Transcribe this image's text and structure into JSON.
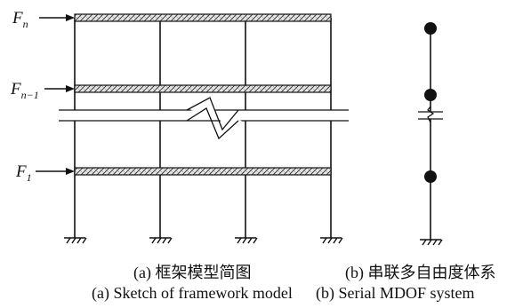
{
  "forces": {
    "top": {
      "symbol": "F",
      "subscript": "n"
    },
    "middle": {
      "symbol": "F",
      "subscript": "n−1"
    },
    "bottom": {
      "symbol": "F",
      "subscript": "1"
    }
  },
  "captions": {
    "a_cn": "(a) 框架模型简图",
    "b_cn": "(b) 串联多自由度体系",
    "a_en": "(a) Sketch of framework model",
    "b_en": "(b) Serial MDOF system"
  },
  "colors": {
    "line": "#111111",
    "beam_fill": "#bfbfbf"
  }
}
